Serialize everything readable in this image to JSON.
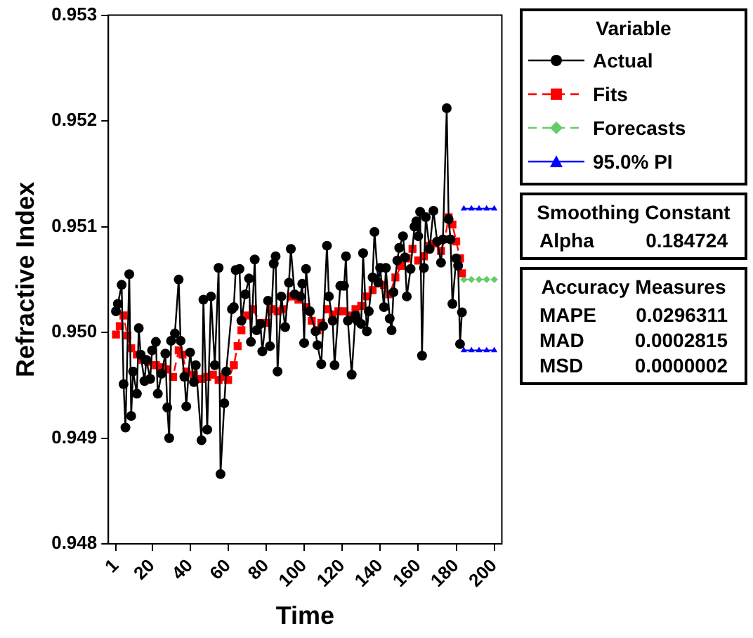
{
  "chart_data": {
    "type": "line",
    "xlabel": "Time",
    "ylabel": "Refractive Index",
    "legend_title": "Variable",
    "legend": "right",
    "grid": false,
    "xlim": [
      -3,
      204
    ],
    "xticks": [
      1,
      20,
      40,
      60,
      80,
      100,
      120,
      140,
      160,
      180,
      200
    ],
    "ylim": [
      0.948,
      0.953
    ],
    "yticks": [
      0.948,
      0.949,
      {
        "value": 0.95,
        "label": "0.950"
      },
      0.951,
      0.952,
      0.953
    ],
    "series": [
      {
        "name": "Actual",
        "color": "#000000",
        "marker": "circle",
        "line_style": "solid",
        "x": [
          1,
          2,
          4,
          5,
          6,
          8,
          9,
          10,
          12,
          13,
          14,
          16,
          17,
          19,
          20,
          22,
          23,
          25,
          27,
          28,
          29,
          30,
          32,
          34,
          35,
          37,
          38,
          40,
          42,
          43,
          46,
          47,
          49,
          51,
          53,
          55,
          56,
          58,
          59,
          62,
          63,
          64,
          66,
          67,
          69,
          71,
          72,
          74,
          75,
          77,
          78,
          81,
          82,
          84,
          85,
          86,
          88,
          90,
          92,
          93,
          95,
          98,
          99,
          100,
          101,
          103,
          106,
          107,
          109,
          110,
          112,
          113,
          115,
          116,
          119,
          121,
          122,
          123,
          125,
          127,
          128,
          130,
          131,
          133,
          134,
          136,
          137,
          139,
          140,
          142,
          143,
          145,
          146,
          147,
          149,
          150,
          152,
          153,
          154,
          156,
          158,
          159,
          160,
          161,
          162,
          163,
          164,
          166,
          168,
          170,
          172,
          173,
          175,
          176,
          177,
          178,
          180,
          181,
          182,
          183
        ],
        "values": [
          0.9502,
          0.95027,
          0.95045,
          0.94951,
          0.9491,
          0.95055,
          0.94921,
          0.94963,
          0.94942,
          0.95004,
          0.94979,
          0.94954,
          0.94974,
          0.94956,
          0.94983,
          0.94991,
          0.94942,
          0.94961,
          0.9498,
          0.94929,
          0.949,
          0.94992,
          0.94999,
          0.9505,
          0.94992,
          0.94958,
          0.9493,
          0.94981,
          0.94953,
          0.94969,
          0.94898,
          0.95031,
          0.94908,
          0.95034,
          0.94969,
          0.95061,
          0.94866,
          0.94933,
          0.94963,
          0.95022,
          0.95024,
          0.95059,
          0.9506,
          0.95011,
          0.95036,
          0.95051,
          0.94991,
          0.95069,
          0.95002,
          0.95008,
          0.94982,
          0.9503,
          0.94987,
          0.95065,
          0.95072,
          0.94963,
          0.95034,
          0.95005,
          0.95047,
          0.95079,
          0.95036,
          0.95034,
          0.95046,
          0.9499,
          0.9506,
          0.9502,
          0.95001,
          0.94988,
          0.9497,
          0.95006,
          0.95082,
          0.95034,
          0.95011,
          0.94969,
          0.95044,
          0.95044,
          0.95072,
          0.95011,
          0.9496,
          0.95016,
          0.95011,
          0.95008,
          0.95075,
          0.95001,
          0.9502,
          0.95052,
          0.95095,
          0.95047,
          0.95061,
          0.95024,
          0.95061,
          0.95013,
          0.95002,
          0.95038,
          0.95068,
          0.9508,
          0.95091,
          0.95071,
          0.95034,
          0.9506,
          0.951,
          0.95105,
          0.95091,
          0.95114,
          0.94978,
          0.95061,
          0.95109,
          0.95079,
          0.95115,
          0.95086,
          0.95066,
          0.95088,
          0.95212,
          0.95107,
          0.95088,
          0.95027,
          0.9507,
          0.95063,
          0.94989,
          0.95019
        ]
      },
      {
        "name": "Fits",
        "color": "#ff0000",
        "marker": "square",
        "line_style": "dashed",
        "x": [
          1,
          3,
          5,
          7,
          9,
          12,
          15,
          18,
          22,
          25,
          28,
          31,
          34,
          36,
          38,
          42,
          46,
          49,
          52,
          55,
          58,
          60,
          63,
          65,
          67,
          70,
          73,
          77,
          80,
          83,
          86,
          89,
          93,
          97,
          101,
          104,
          107,
          109,
          112,
          115,
          118,
          121,
          124,
          127,
          130,
          133,
          136,
          139,
          142,
          145,
          148,
          151,
          154,
          157,
          160,
          163,
          166,
          169,
          172,
          174,
          176,
          178,
          180,
          182,
          183
        ],
        "values": [
          0.94998,
          0.95006,
          0.95016,
          0.94997,
          0.94985,
          0.94979,
          0.94974,
          0.94972,
          0.94969,
          0.94967,
          0.94965,
          0.94958,
          0.94983,
          0.94979,
          0.94963,
          0.9496,
          0.94956,
          0.94958,
          0.9496,
          0.94955,
          0.94958,
          0.94955,
          0.94969,
          0.94987,
          0.95002,
          0.95016,
          0.95022,
          0.95009,
          0.95009,
          0.95022,
          0.9502,
          0.95022,
          0.95034,
          0.95031,
          0.95024,
          0.95011,
          0.95002,
          0.95009,
          0.95022,
          0.95017,
          0.9502,
          0.9502,
          0.95016,
          0.95022,
          0.95025,
          0.95034,
          0.9504,
          0.95047,
          0.95045,
          0.95036,
          0.95052,
          0.95063,
          0.9507,
          0.95079,
          0.95068,
          0.95072,
          0.95082,
          0.95084,
          0.95077,
          0.95088,
          0.95109,
          0.95102,
          0.95086,
          0.9507,
          0.95056
        ]
      },
      {
        "name": "Forecasts",
        "color": "#66cc66",
        "marker": "diamond",
        "line_style": "dashed",
        "x": [
          184,
          188,
          192,
          196,
          200
        ],
        "values": [
          0.9505,
          0.9505,
          0.9505,
          0.9505,
          0.9505
        ]
      },
      {
        "name": "95.0% PI",
        "color": "#0000ff",
        "marker": "triangle",
        "line_style": "solid",
        "x": [
          184,
          188,
          192,
          196,
          200
        ],
        "values": [
          0.95117,
          0.95117,
          0.95117,
          0.95117,
          0.95117
        ]
      },
      {
        "color": "#0000ff",
        "marker": "triangle",
        "line_style": "solid",
        "x": [
          184,
          188,
          192,
          196,
          200
        ],
        "values": [
          0.94983,
          0.94983,
          0.94983,
          0.94983,
          0.94983
        ]
      }
    ],
    "annotations": [
      "Smoothing Constant",
      "Alpha 0.184724",
      "Accuracy Measures",
      "MAPE 0.0296311",
      "MAD 0.0002815",
      "MSD 0.0000002"
    ]
  }
}
